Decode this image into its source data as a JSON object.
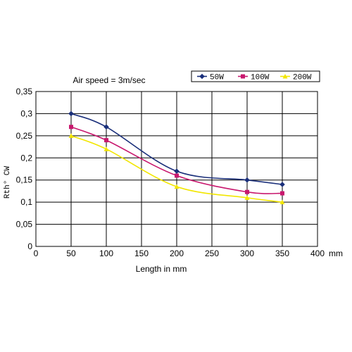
{
  "chart_data": {
    "type": "line",
    "title": "Air speed = 3m/sec",
    "xlabel": "Length in mm",
    "x_unit": "mm",
    "ylabel": "Rth° CW",
    "xlim": [
      0,
      400
    ],
    "ylim": [
      0,
      0.35
    ],
    "x_ticks": [
      "0",
      "50",
      "100",
      "150",
      "200",
      "250",
      "300",
      "350",
      "400"
    ],
    "y_ticks": [
      "0",
      "0,05",
      "0,1",
      "0,15",
      "0,2",
      "0,25",
      "0,3",
      "0,35"
    ],
    "grid": true,
    "legend_position": "top-right",
    "x": [
      50,
      100,
      200,
      300,
      350
    ],
    "series": [
      {
        "name": "50W",
        "color": "#1a2f7a",
        "marker": "diamond",
        "values": [
          0.3,
          0.27,
          0.17,
          0.15,
          0.14
        ]
      },
      {
        "name": "100W",
        "color": "#c8186e",
        "marker": "square",
        "values": [
          0.27,
          0.24,
          0.16,
          0.123,
          0.12
        ]
      },
      {
        "name": "200W",
        "color": "#f2e600",
        "marker": "triangle",
        "values": [
          0.25,
          0.22,
          0.135,
          0.11,
          0.1
        ]
      }
    ]
  }
}
